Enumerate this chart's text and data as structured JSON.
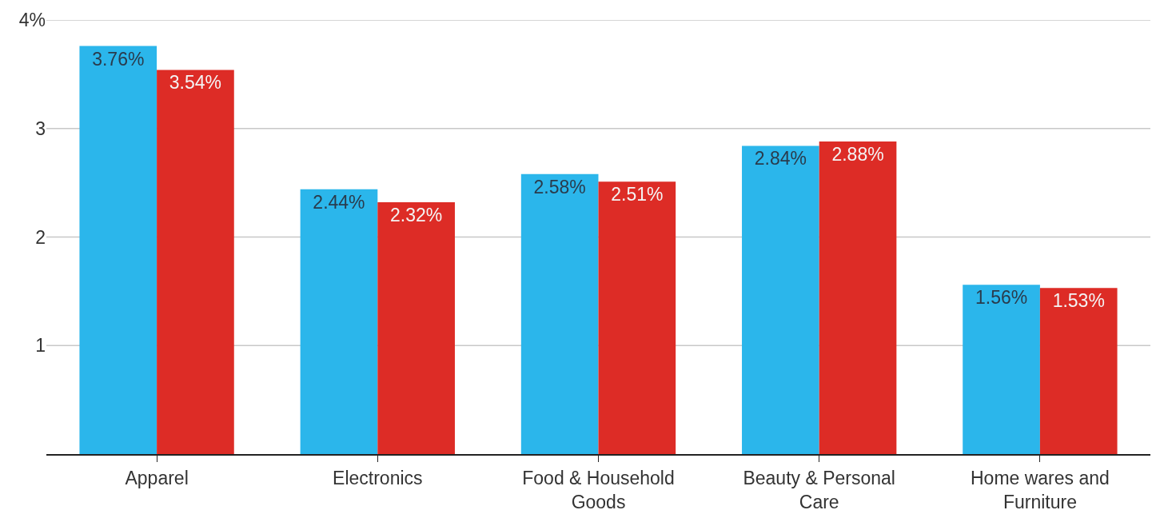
{
  "chart_data": {
    "type": "bar",
    "categories": [
      "Apparel",
      "Electronics",
      "Food & Household Goods",
      "Beauty & Personal Care",
      "Home wares and Furniture"
    ],
    "series": [
      {
        "color": "#2bb6eb",
        "values": [
          3.76,
          2.44,
          2.58,
          2.84,
          1.56
        ],
        "value_labels": [
          "3.76%",
          "2.44%",
          "2.58%",
          "2.84%",
          "1.56%"
        ]
      },
      {
        "color": "#dd2c26",
        "values": [
          3.54,
          2.32,
          2.51,
          2.88,
          1.53
        ],
        "value_labels": [
          "3.54%",
          "2.32%",
          "2.51%",
          "2.88%",
          "1.53%"
        ]
      }
    ],
    "ylim": [
      0,
      4
    ],
    "yticks": [
      1,
      2,
      3,
      {
        "value": 4,
        "label": "4%"
      }
    ],
    "grid": "y"
  }
}
